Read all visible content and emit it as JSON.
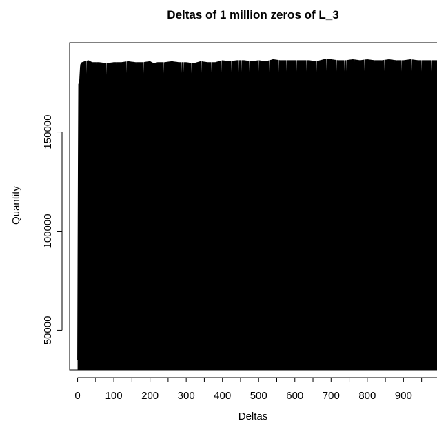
{
  "chart_data": {
    "type": "bar",
    "title": "Deltas of 1 million zeros of L_3",
    "xlabel": "Deltas",
    "ylabel": "Quantity",
    "xlim": [
      -22,
      1004
    ],
    "ylim": [
      30000,
      195000
    ],
    "x_ticks": [
      0,
      100,
      200,
      300,
      400,
      500,
      600,
      700,
      800,
      900
    ],
    "x_tick_labels": [
      "0",
      "100",
      "200",
      "300",
      "400",
      "500",
      "600",
      "700",
      "800",
      "900"
    ],
    "y_ticks": [
      50000,
      100000,
      150000
    ],
    "y_tick_labels": [
      "50000",
      "100000",
      "150000"
    ],
    "grid": false,
    "legend": "none",
    "color": "#000000",
    "series": [
      {
        "x": [
          0,
          1,
          2,
          3,
          5,
          8,
          12,
          20,
          30,
          40,
          60,
          80,
          100,
          120,
          140,
          160,
          180,
          200,
          210,
          220,
          240,
          260,
          280,
          300,
          320,
          340,
          360,
          380,
          400,
          420,
          440,
          460,
          480,
          500,
          520,
          540,
          560,
          580,
          600,
          620,
          640,
          660,
          680,
          700,
          720,
          740,
          760,
          780,
          800,
          820,
          840,
          860,
          880,
          900,
          920,
          940,
          960,
          980,
          1000
        ],
        "values": [
          35000,
          90000,
          142000,
          160000,
          174000,
          184000,
          185000,
          185500,
          186000,
          185000,
          185000,
          184500,
          185000,
          185000,
          185500,
          185000,
          185000,
          185500,
          184500,
          185000,
          185000,
          185500,
          185000,
          185000,
          184500,
          185500,
          185000,
          185000,
          186000,
          185500,
          186000,
          186000,
          185500,
          186000,
          185500,
          186500,
          186000,
          186000,
          186000,
          186000,
          186000,
          185500,
          186500,
          186500,
          186000,
          186000,
          186500,
          186000,
          186500,
          186000,
          186000,
          186500,
          186000,
          186000,
          186500,
          186000,
          186000,
          186000,
          186000
        ],
        "dip_values": [
          172000,
          175000,
          176000,
          174000,
          172000,
          175000,
          173000,
          172000,
          174000,
          175000,
          174000,
          173000,
          175000,
          174000,
          174000,
          176000,
          174000,
          173000,
          175000,
          174000,
          174000,
          175000,
          174000,
          175000,
          174000,
          174000,
          175000,
          175000,
          174000,
          175000,
          174000,
          175000,
          175000,
          175000,
          174000,
          175000,
          174000,
          175000,
          175000,
          175000,
          175000,
          175000,
          175000,
          175000,
          175000,
          175000,
          175000,
          175000,
          175000,
          175000,
          175000,
          175000,
          175000,
          175000,
          175000,
          175000,
          175000,
          175000,
          175000
        ]
      }
    ]
  }
}
